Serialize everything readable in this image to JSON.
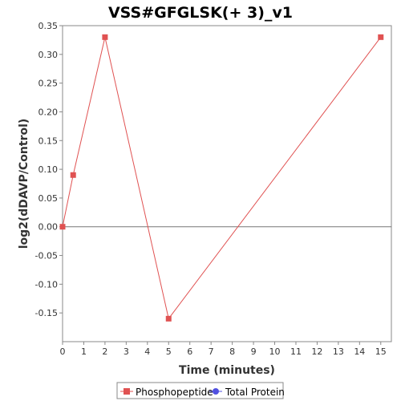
{
  "chart_data": {
    "type": "line",
    "title": "VSS#GFGLSK(+ 3)_v1",
    "xlabel": "Time (minutes)",
    "ylabel": "log2(dDAVP/Control)",
    "xlim": [
      0,
      15.5
    ],
    "ylim": [
      -0.2,
      0.35
    ],
    "xticks": [
      0,
      1,
      2,
      3,
      4,
      5,
      6,
      7,
      8,
      9,
      10,
      11,
      12,
      13,
      14,
      15
    ],
    "yticks": [
      -0.15,
      -0.1,
      -0.05,
      0.0,
      0.05,
      0.1,
      0.15,
      0.2,
      0.25,
      0.3,
      0.35
    ],
    "ytick_labels": [
      "-0.15",
      "-0.10",
      "-0.05",
      "0.00",
      "0.05",
      "0.10",
      "0.15",
      "0.20",
      "0.25",
      "0.30",
      "0.35"
    ],
    "zero_line": true,
    "grid": false,
    "legend_position": "bottom",
    "series": [
      {
        "name": "Phosphopeptide",
        "color": "#e05252",
        "marker": "square",
        "x": [
          0,
          0.5,
          2,
          5,
          15
        ],
        "y": [
          0.0,
          0.09,
          0.33,
          -0.16,
          0.33
        ]
      },
      {
        "name": "Total Protein",
        "color": "#5050e0",
        "marker": "circle",
        "x": [],
        "y": []
      }
    ]
  }
}
